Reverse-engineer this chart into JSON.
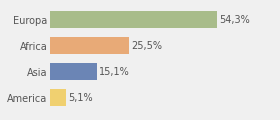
{
  "categories": [
    "America",
    "Asia",
    "Africa",
    "Europa"
  ],
  "values": [
    5.1,
    15.1,
    25.5,
    54.3
  ],
  "labels": [
    "5,1%",
    "15,1%",
    "25,5%",
    "54,3%"
  ],
  "bar_colors": [
    "#f0d070",
    "#6b85b5",
    "#e8aa77",
    "#a8bc8a"
  ],
  "background_color": "#f0f0f0",
  "xlim": [
    0,
    72
  ],
  "bar_height": 0.65,
  "label_fontsize": 7.0,
  "tick_fontsize": 7.0,
  "label_color": "#555555",
  "tick_color": "#555555"
}
